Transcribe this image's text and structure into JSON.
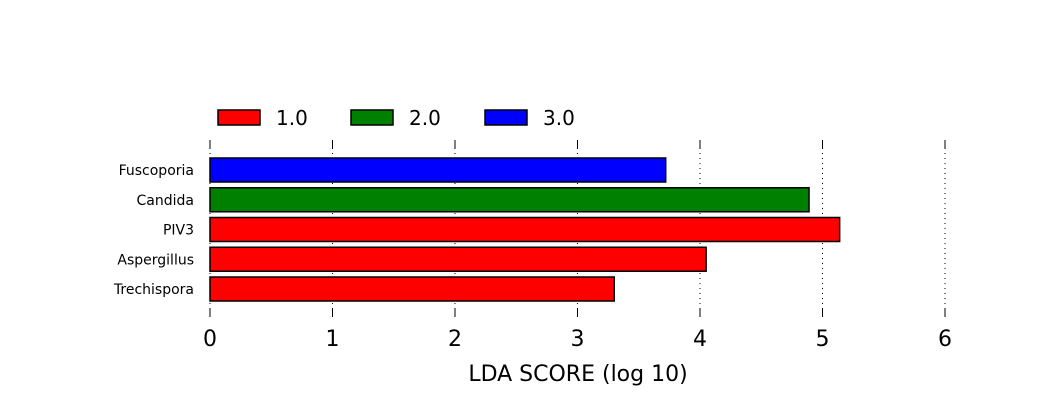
{
  "chart_data": {
    "type": "bar",
    "orientation": "horizontal",
    "title": "",
    "xlabel": "LDA SCORE (log 10)",
    "ylabel": "",
    "xlim": [
      0,
      6
    ],
    "xticks": [
      "0",
      "1",
      "2",
      "3",
      "4",
      "5",
      "6"
    ],
    "grid": "x-dotted",
    "legend": {
      "placement": "top-left",
      "entries": [
        {
          "label": "1.0",
          "color": "#ff0000"
        },
        {
          "label": "2.0",
          "color": "#008000"
        },
        {
          "label": "3.0",
          "color": "#0000ff"
        }
      ]
    },
    "bars": [
      {
        "category": "Fuscoporia",
        "value": 3.72,
        "group": "3.0",
        "color": "#0000ff"
      },
      {
        "category": "Candida",
        "value": 4.89,
        "group": "2.0",
        "color": "#008000"
      },
      {
        "category": "PIV3",
        "value": 5.14,
        "group": "1.0",
        "color": "#ff0000"
      },
      {
        "category": "Aspergillus",
        "value": 4.05,
        "group": "1.0",
        "color": "#ff0000"
      },
      {
        "category": "Trechispora",
        "value": 3.3,
        "group": "1.0",
        "color": "#ff0000"
      }
    ]
  }
}
